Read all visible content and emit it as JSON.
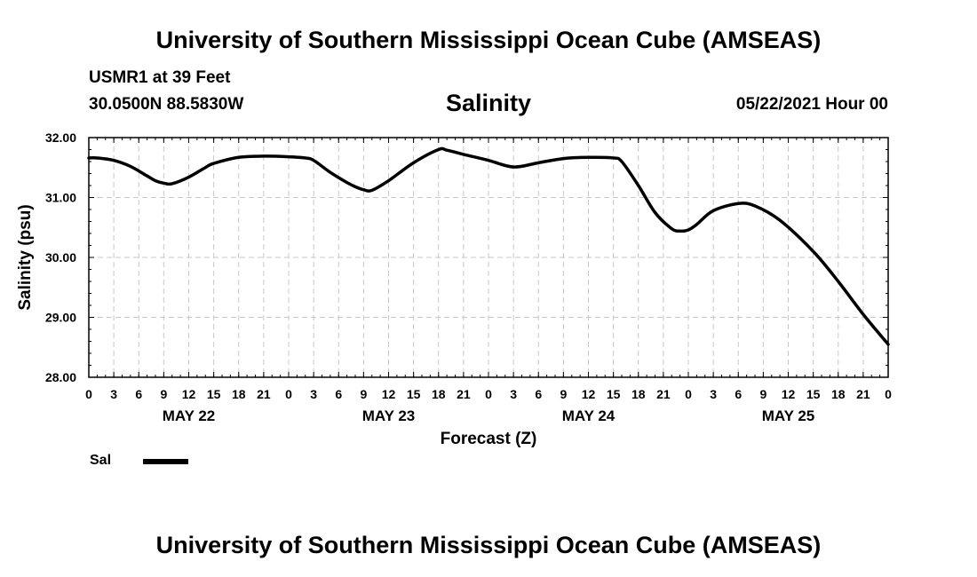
{
  "header": {
    "title": "University of Southern Mississippi Ocean Cube (AMSEAS)",
    "station": "USMR1 at 39 Feet",
    "coordinates": "30.0500N  88.5830W",
    "variable": "Salinity",
    "issued": "05/22/2021 Hour 00"
  },
  "footer": {
    "title": "University of Southern Mississippi Ocean Cube (AMSEAS)"
  },
  "legend": {
    "label": "Sal"
  },
  "chart_data": {
    "type": "line",
    "title": "Salinity",
    "xlabel": "Forecast (Z)",
    "ylabel": "Salinity (psu)",
    "ylim": [
      28.0,
      32.0
    ],
    "yticks": [
      "28.00",
      "29.00",
      "30.00",
      "31.00",
      "32.00"
    ],
    "xlim_hours": [
      0,
      96
    ],
    "xtick_labels": [
      "0",
      "3",
      "6",
      "9",
      "12",
      "15",
      "18",
      "21",
      "0",
      "3",
      "6",
      "9",
      "12",
      "15",
      "18",
      "21",
      "0",
      "3",
      "6",
      "9",
      "12",
      "15",
      "18",
      "21",
      "0",
      "3",
      "6",
      "9",
      "12",
      "15",
      "18",
      "21",
      "0"
    ],
    "day_labels": [
      {
        "label": "MAY 22",
        "center_hour": 12
      },
      {
        "label": "MAY 23",
        "center_hour": 36
      },
      {
        "label": "MAY 24",
        "center_hour": 60
      },
      {
        "label": "MAY 25",
        "center_hour": 84
      }
    ],
    "grid": true,
    "legend": "bottom-left",
    "series": [
      {
        "name": "Sal",
        "color": "#000000",
        "x": [
          0,
          1,
          3,
          5,
          7,
          8,
          9,
          10,
          12,
          14,
          15,
          18,
          21,
          24,
          26,
          27,
          29,
          31,
          32,
          33,
          34,
          36,
          39,
          42,
          43,
          45,
          48,
          51,
          54,
          57,
          60,
          63,
          64,
          66,
          68,
          70,
          71,
          72,
          73,
          75,
          78,
          80,
          83,
          87,
          90,
          93,
          96
        ],
        "y": [
          31.66,
          31.66,
          31.62,
          31.52,
          31.36,
          31.28,
          31.24,
          31.23,
          31.34,
          31.5,
          31.57,
          31.67,
          31.69,
          31.68,
          31.66,
          31.62,
          31.42,
          31.25,
          31.18,
          31.13,
          31.12,
          31.28,
          31.58,
          31.8,
          31.79,
          31.72,
          31.62,
          31.51,
          31.58,
          31.65,
          31.67,
          31.66,
          31.6,
          31.2,
          30.75,
          30.48,
          30.44,
          30.46,
          30.55,
          30.78,
          30.9,
          30.86,
          30.62,
          30.1,
          29.6,
          29.05,
          28.55
        ]
      }
    ]
  }
}
